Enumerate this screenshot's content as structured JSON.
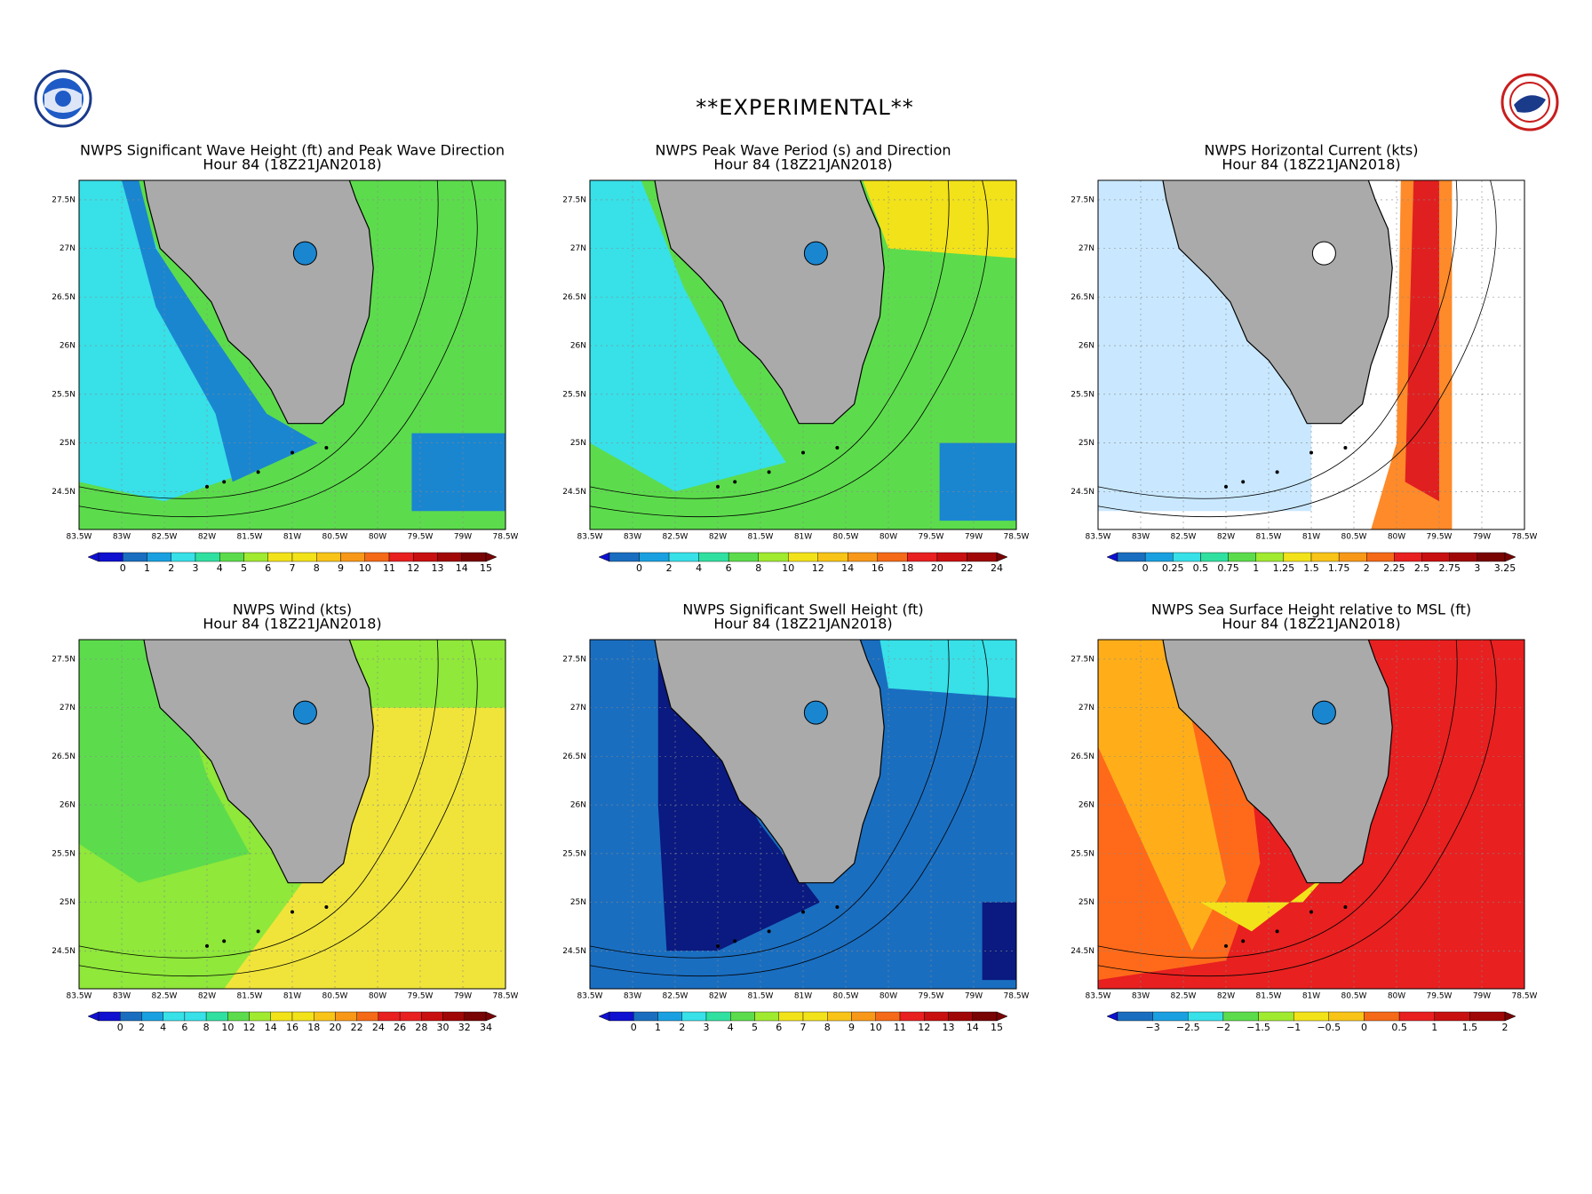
{
  "header": {
    "title": "**EXPERIMENTAL**"
  },
  "latitudes": [
    "27.5N",
    "27N",
    "26.5N",
    "26N",
    "25.5N",
    "25N",
    "24.5N"
  ],
  "longitudes": [
    "83.5W",
    "83W",
    "82.5W",
    "82W",
    "81.5W",
    "81W",
    "80.5W",
    "80W",
    "79.5W",
    "79W",
    "78.5W"
  ],
  "panels": [
    {
      "title": "NWPS Significant Wave Height (ft) and Peak Wave Direction",
      "subtitle": "Hour 84 (18Z21JAN2018)",
      "colorbar": [
        "0",
        "1",
        "2",
        "3",
        "4",
        "5",
        "6",
        "7",
        "8",
        "9",
        "10",
        "11",
        "12",
        "13",
        "14",
        "15"
      ]
    },
    {
      "title": "NWPS Peak Wave Period (s) and Direction",
      "subtitle": "Hour 84 (18Z21JAN2018)",
      "colorbar": [
        "0",
        "2",
        "4",
        "6",
        "8",
        "10",
        "12",
        "14",
        "16",
        "18",
        "20",
        "22",
        "24"
      ]
    },
    {
      "title": "NWPS Horizontal Current (kts)",
      "subtitle": "Hour 84 (18Z21JAN2018)",
      "colorbar": [
        "0",
        "0.25",
        "0.5",
        "0.75",
        "1",
        "1.25",
        "1.5",
        "1.75",
        "2",
        "2.25",
        "2.5",
        "2.75",
        "3",
        "3.25"
      ]
    },
    {
      "title": "NWPS Wind (kts)",
      "subtitle": "Hour 84 (18Z21JAN2018)",
      "colorbar": [
        "0",
        "2",
        "4",
        "6",
        "8",
        "10",
        "12",
        "14",
        "16",
        "18",
        "20",
        "22",
        "24",
        "26",
        "28",
        "30",
        "32",
        "34"
      ]
    },
    {
      "title": "NWPS Significant Swell Height (ft)",
      "subtitle": "Hour 84 (18Z21JAN2018)",
      "colorbar": [
        "0",
        "1",
        "2",
        "3",
        "4",
        "5",
        "6",
        "7",
        "8",
        "9",
        "10",
        "11",
        "12",
        "13",
        "14",
        "15"
      ]
    },
    {
      "title": "NWPS Sea Surface Height relative to MSL (ft)",
      "subtitle": "Hour 84 (18Z21JAN2018)",
      "colorbar": [
        "−3",
        "−2.5",
        "−2",
        "−1.5",
        "−1",
        "−0.5",
        "0",
        "0.5",
        "1",
        "1.5",
        "2"
      ]
    }
  ]
}
